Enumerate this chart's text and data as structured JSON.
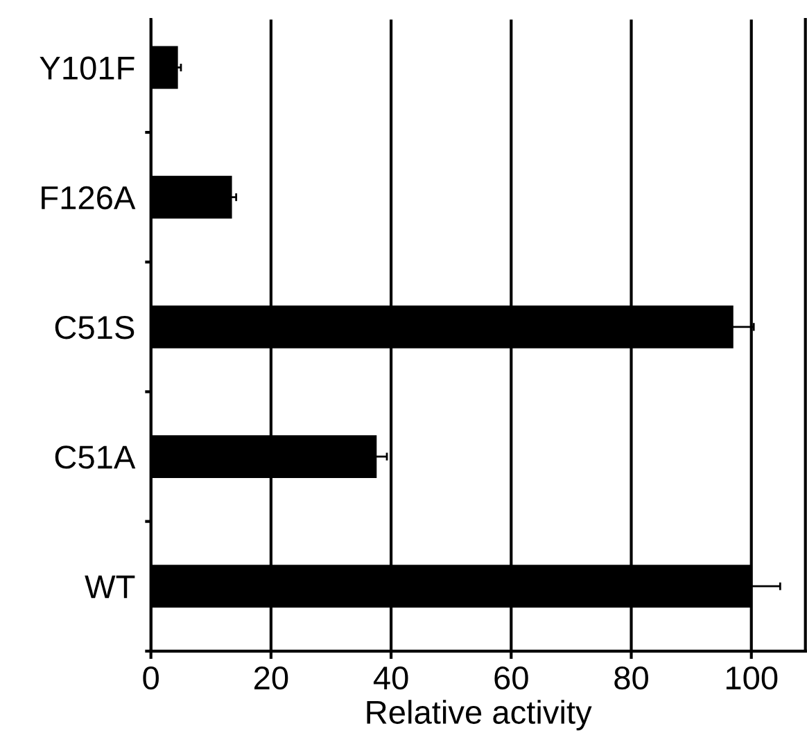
{
  "chart_data": {
    "type": "bar",
    "orientation": "horizontal",
    "xlabel": "Relative activity",
    "categories": [
      "Y101F",
      "F126A",
      "C51S",
      "C51A",
      "WT"
    ],
    "values": [
      4.5,
      13.5,
      97,
      37.6,
      100
    ],
    "errors": [
      0.5,
      0.7,
      3.4,
      1.7,
      4.8
    ],
    "color": "#000000",
    "xlim": [
      0,
      109
    ],
    "xticks": [
      0,
      20,
      40,
      60,
      80,
      100
    ],
    "grid": "x",
    "legend": false
  }
}
